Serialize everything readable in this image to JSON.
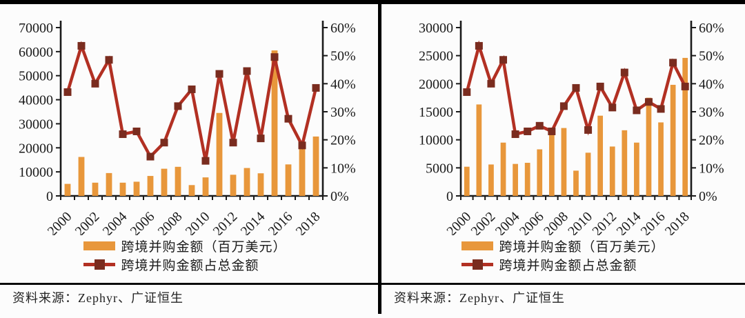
{
  "figure": {
    "background": "#fcfcfc",
    "rule_color": "#000000"
  },
  "panels": [
    {
      "source_label": "资料来源：Zephyr、广证恒生"
    },
    {
      "source_label": "资料来源：Zephyr、广证恒生"
    }
  ],
  "chart_data": [
    {
      "type": "bar",
      "subtype": "bar-line-dual-axis",
      "categories": [
        "2000",
        "2001",
        "2002",
        "2003",
        "2004",
        "2005",
        "2006",
        "2007",
        "2008",
        "2009",
        "2010",
        "2011",
        "2012",
        "2013",
        "2014",
        "2015",
        "2016",
        "2017",
        "2018"
      ],
      "x_tick_label_every": 2,
      "grid": false,
      "legend_position": "bottom",
      "left_axis": {
        "min": 0,
        "max": 70000,
        "step": 10000
      },
      "right_axis": {
        "min": 0,
        "max": 60,
        "step": 10,
        "suffix": "%"
      },
      "series": [
        {
          "name": "跨境并购金额（百万美元）",
          "type": "bar",
          "axis": "left",
          "color": "#E8973B",
          "values": [
            5000,
            16200,
            5500,
            9500,
            5500,
            5900,
            8300,
            11300,
            12100,
            4500,
            7700,
            34500,
            8800,
            11600,
            9400,
            60500,
            13100,
            19500,
            24700
          ]
        },
        {
          "name": "跨境并购金额占总金额",
          "type": "line",
          "axis": "right",
          "unit": "%",
          "color": "#B23023",
          "marker_color": "#7A2C1F",
          "values": [
            37,
            53.5,
            40,
            48.5,
            22,
            23,
            14,
            19,
            32,
            38,
            12.5,
            43.5,
            19,
            44.5,
            20.5,
            49.5,
            27.5,
            18,
            38.5
          ]
        }
      ]
    },
    {
      "type": "bar",
      "subtype": "bar-line-dual-axis",
      "categories": [
        "2000",
        "2001",
        "2002",
        "2003",
        "2004",
        "2005",
        "2006",
        "2007",
        "2008",
        "2009",
        "2010",
        "2011",
        "2012",
        "2013",
        "2014",
        "2015",
        "2016",
        "2017",
        "2018"
      ],
      "x_tick_label_every": 2,
      "grid": false,
      "legend_position": "bottom",
      "left_axis": {
        "min": 0,
        "max": 30000,
        "step": 5000
      },
      "right_axis": {
        "min": 0,
        "max": 60,
        "step": 10,
        "suffix": "%"
      },
      "series": [
        {
          "name": "跨境并购金额（百万美元）",
          "type": "bar",
          "axis": "left",
          "color": "#E8973B",
          "values": [
            5200,
            16300,
            5600,
            9500,
            5700,
            5900,
            8300,
            11300,
            12100,
            4500,
            7700,
            14300,
            8800,
            11700,
            9500,
            17500,
            13100,
            19800,
            24600
          ]
        },
        {
          "name": "跨境并购金额占总金额",
          "type": "line",
          "axis": "right",
          "unit": "%",
          "color": "#B23023",
          "marker_color": "#7A2C1F",
          "values": [
            37,
            53.5,
            40,
            48.5,
            22,
            23,
            25,
            23,
            32,
            38.5,
            23.5,
            39,
            31.5,
            44,
            30.5,
            33.5,
            31,
            47.5,
            39
          ]
        }
      ]
    }
  ]
}
